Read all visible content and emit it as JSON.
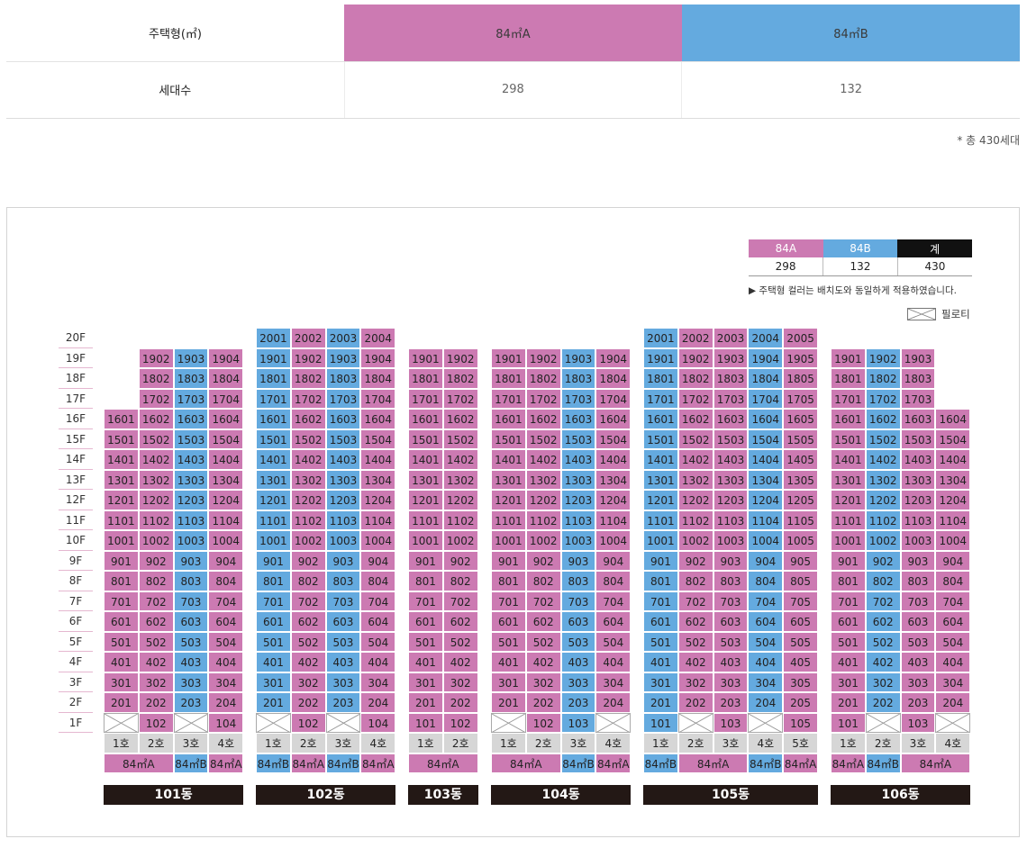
{
  "summary": {
    "label_type": "주택형(㎡)",
    "label_count": "세대수",
    "type_a": "84㎡A",
    "type_b": "84㎡B",
    "count_a": "298",
    "count_b": "132",
    "total_note": "* 총 430세대"
  },
  "legend": {
    "head_a": "84A",
    "head_b": "84B",
    "head_total": "계",
    "val_a": "298",
    "val_b": "132",
    "val_total": "430",
    "note": "▶ 주택형 컬러는 배치도와 동일하게 적용하였습니다.",
    "piloti": "필로티"
  },
  "colors": {
    "type_a": "#cc7ab2",
    "type_b": "#64aadf",
    "building_label": "#231815"
  },
  "floors": [
    "20F",
    "19F",
    "18F",
    "17F",
    "16F",
    "15F",
    "14F",
    "13F",
    "12F",
    "11F",
    "10F",
    "9F",
    "8F",
    "7F",
    "6F",
    "5F",
    "4F",
    "3F",
    "2F",
    "1F"
  ],
  "buildings": [
    {
      "name": "101동",
      "max": [
        16,
        19,
        19,
        19
      ],
      "types": [
        "a",
        "a",
        "b",
        "a"
      ],
      "first": [
        "p",
        "102",
        "p",
        "104"
      ],
      "ho": [
        "1호",
        "2호",
        "3호",
        "4호"
      ],
      "type_labels": [
        {
          "text": "84㎡A",
          "span": 2,
          "t": "a"
        },
        {
          "text": "84㎡B",
          "span": 1,
          "t": "b"
        },
        {
          "text": "84㎡A",
          "span": 1,
          "t": "a"
        }
      ]
    },
    {
      "name": "102동",
      "max": [
        20,
        20,
        20,
        20
      ],
      "types": [
        "b",
        "a",
        "b",
        "a"
      ],
      "first": [
        "p",
        "102",
        "p",
        "104"
      ],
      "ho": [
        "1호",
        "2호",
        "3호",
        "4호"
      ],
      "type_labels": [
        {
          "text": "84㎡B",
          "span": 1,
          "t": "b"
        },
        {
          "text": "84㎡A",
          "span": 1,
          "t": "a"
        },
        {
          "text": "84㎡B",
          "span": 1,
          "t": "b"
        },
        {
          "text": "84㎡A",
          "span": 1,
          "t": "a"
        }
      ]
    },
    {
      "name": "103동",
      "max": [
        19,
        19
      ],
      "types": [
        "a",
        "a"
      ],
      "first": [
        "101",
        "102"
      ],
      "ho": [
        "1호",
        "2호"
      ],
      "type_labels": [
        {
          "text": "84㎡A",
          "span": 2,
          "t": "a"
        }
      ]
    },
    {
      "name": "104동",
      "max": [
        19,
        19,
        19,
        19
      ],
      "types": [
        "a",
        "a",
        "b",
        "a"
      ],
      "first": [
        "p",
        "102",
        "103",
        "p"
      ],
      "ho": [
        "1호",
        "2호",
        "3호",
        "4호"
      ],
      "type_labels": [
        {
          "text": "84㎡A",
          "span": 2,
          "t": "a"
        },
        {
          "text": "84㎡B",
          "span": 1,
          "t": "b"
        },
        {
          "text": "84㎡A",
          "span": 1,
          "t": "a"
        }
      ]
    },
    {
      "name": "105동",
      "max": [
        20,
        20,
        20,
        20,
        20
      ],
      "types": [
        "b",
        "a",
        "a",
        "b",
        "a"
      ],
      "first": [
        "101",
        "p",
        "103",
        "p",
        "105"
      ],
      "ho": [
        "1호",
        "2호",
        "3호",
        "4호",
        "5호"
      ],
      "type_labels": [
        {
          "text": "84㎡B",
          "span": 1,
          "t": "b"
        },
        {
          "text": "84㎡A",
          "span": 2,
          "t": "a"
        },
        {
          "text": "84㎡B",
          "span": 1,
          "t": "b"
        },
        {
          "text": "84㎡A",
          "span": 1,
          "t": "a"
        }
      ]
    },
    {
      "name": "106동",
      "max": [
        19,
        19,
        19,
        16
      ],
      "types": [
        "a",
        "b",
        "a",
        "a"
      ],
      "first": [
        "101",
        "p",
        "103",
        "p"
      ],
      "ho": [
        "1호",
        "2호",
        "3호",
        "4호"
      ],
      "type_labels": [
        {
          "text": "84㎡A",
          "span": 1,
          "t": "a"
        },
        {
          "text": "84㎡B",
          "span": 1,
          "t": "b"
        },
        {
          "text": "84㎡A",
          "span": 2,
          "t": "a"
        }
      ]
    }
  ]
}
